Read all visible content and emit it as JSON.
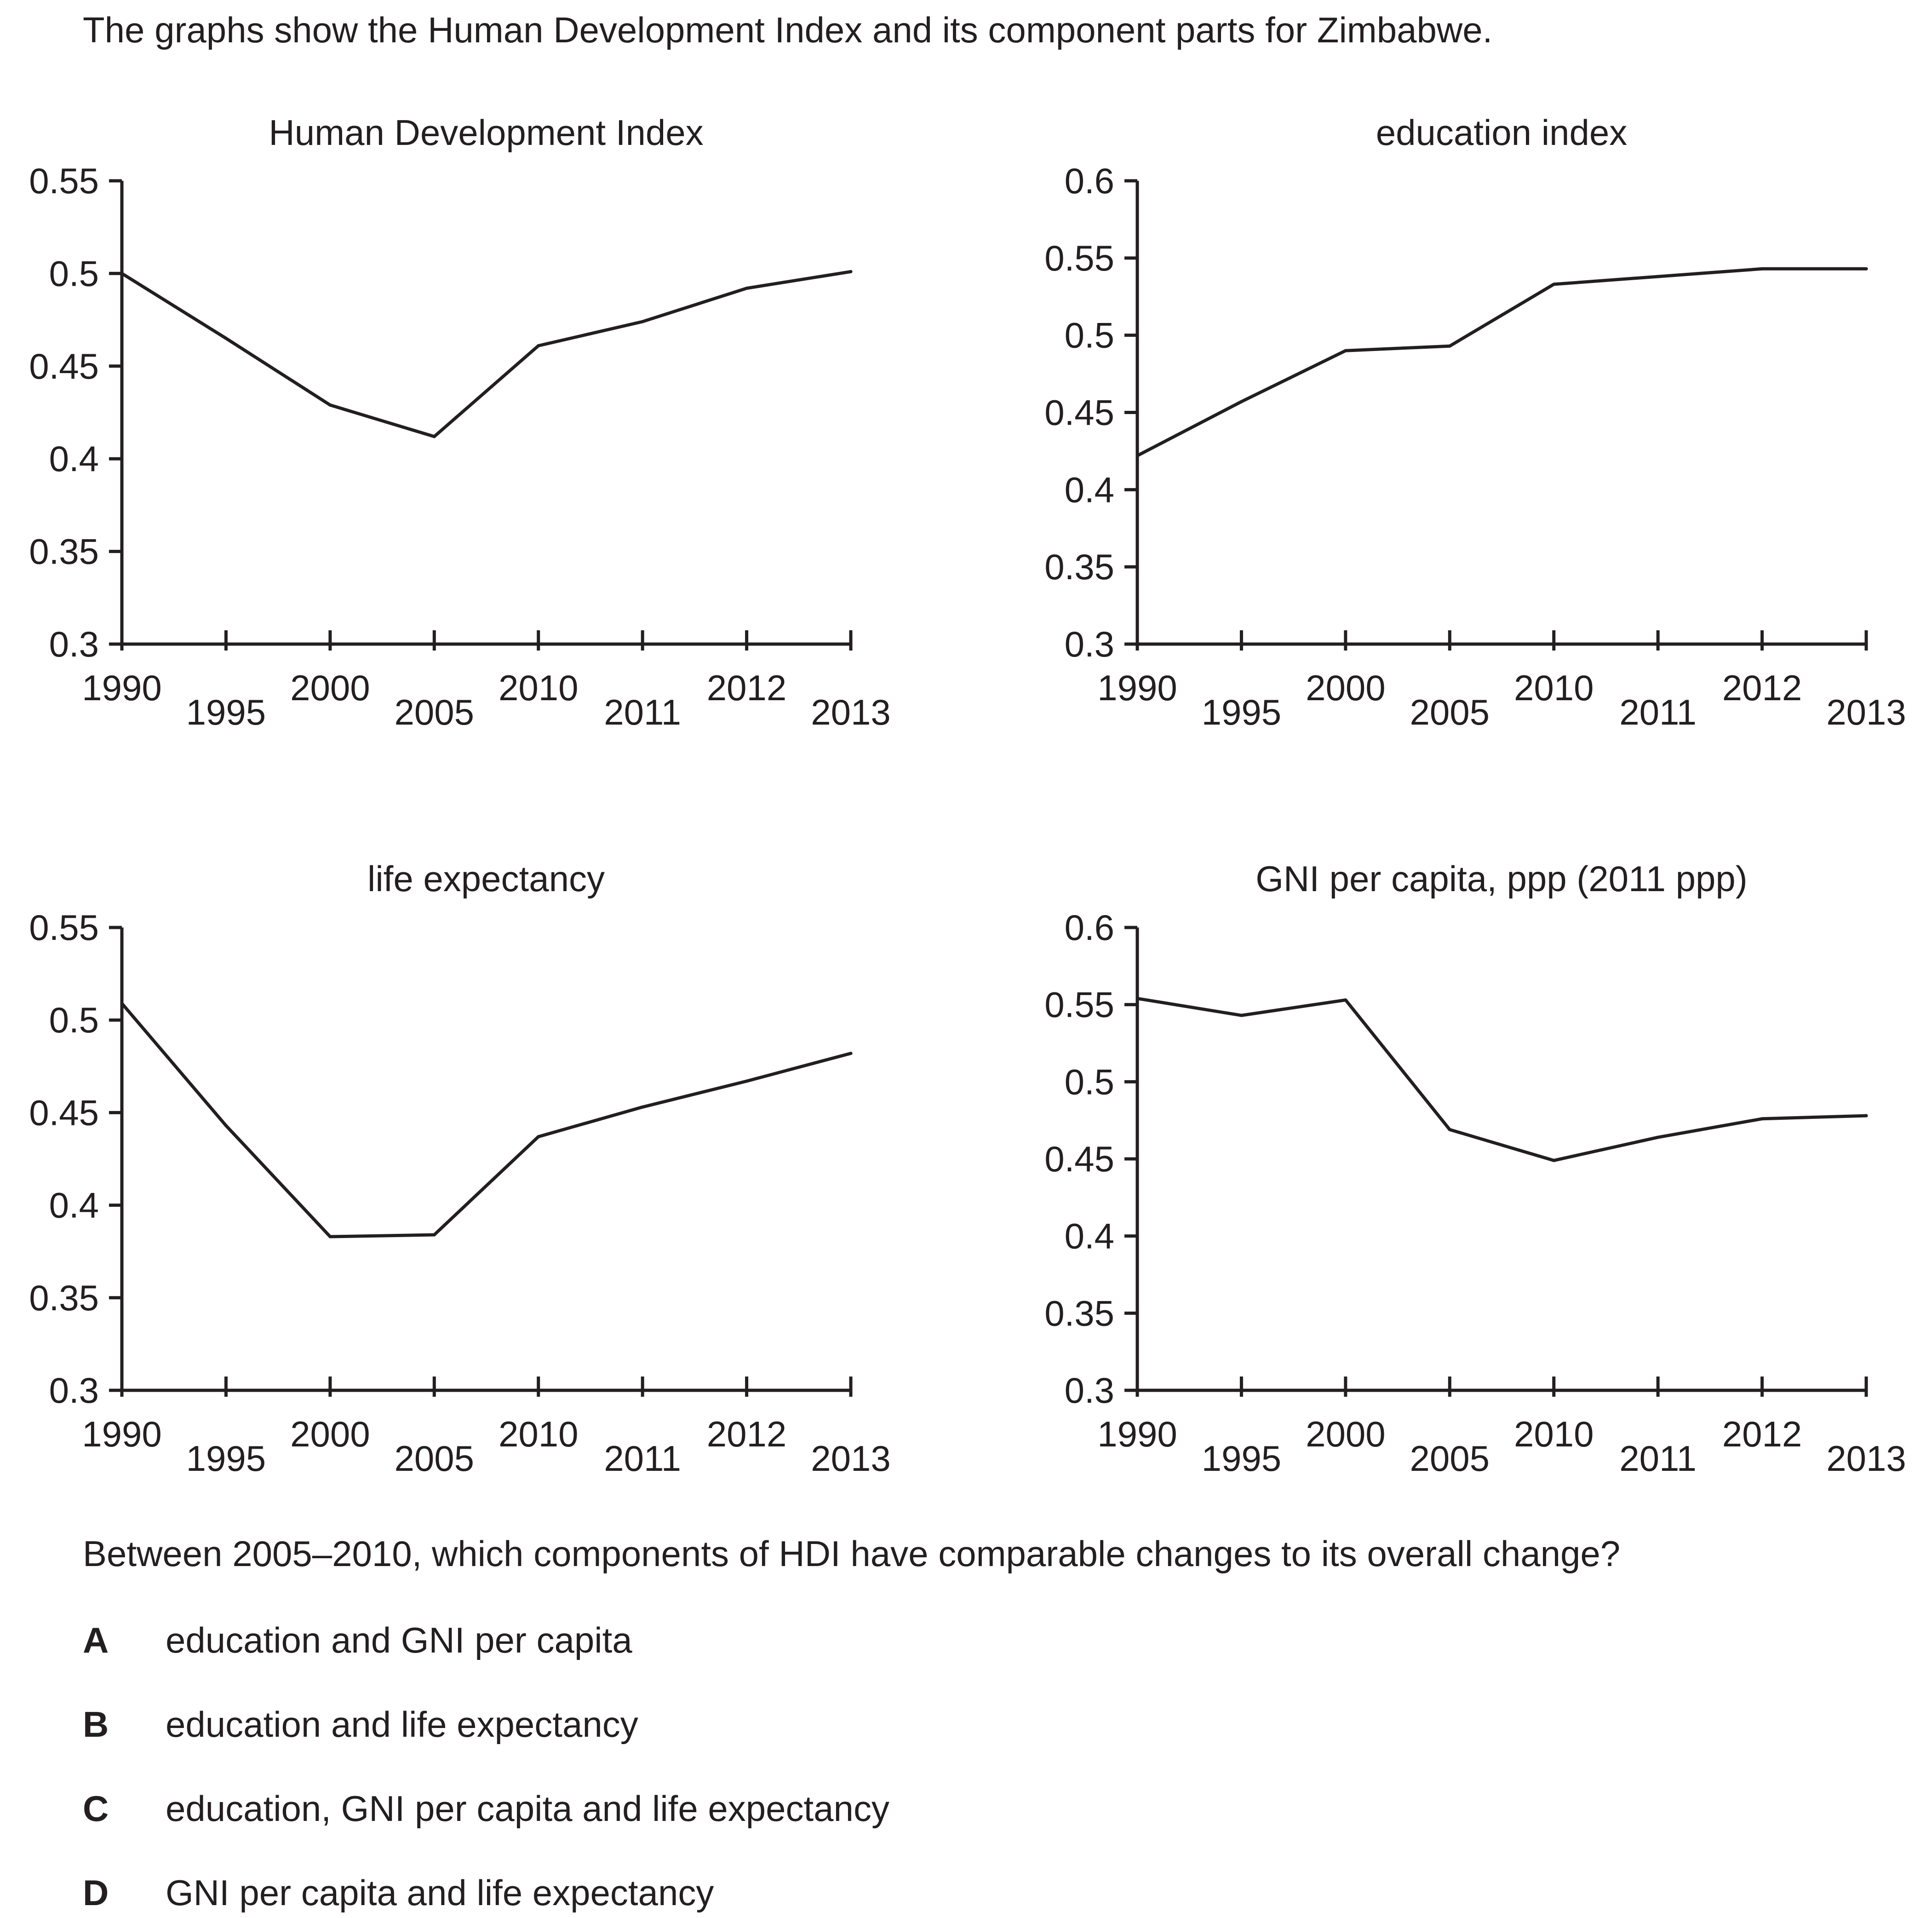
{
  "intro": "The graphs show the Human Development Index and its component parts for Zimbabwe.",
  "chart_data": [
    {
      "type": "line",
      "title": "Human Development Index",
      "categories": [
        "1990",
        "1995",
        "2000",
        "2005",
        "2010",
        "2011",
        "2012",
        "2013"
      ],
      "y_ticks": [
        "0.3",
        "0.35",
        "0.4",
        "0.45",
        "0.5",
        "0.55"
      ],
      "ylim": [
        0.3,
        0.55
      ],
      "values": [
        0.5,
        0.465,
        0.429,
        0.412,
        0.461,
        0.474,
        0.492,
        0.501
      ],
      "grid": false
    },
    {
      "type": "line",
      "title": "education index",
      "categories": [
        "1990",
        "1995",
        "2000",
        "2005",
        "2010",
        "2011",
        "2012",
        "2013"
      ],
      "y_ticks": [
        "0.3",
        "0.35",
        "0.4",
        "0.45",
        "0.5",
        "0.55",
        "0.6"
      ],
      "ylim": [
        0.3,
        0.6
      ],
      "values": [
        0.422,
        0.457,
        0.49,
        0.493,
        0.533,
        0.538,
        0.543,
        0.543
      ],
      "grid": false
    },
    {
      "type": "line",
      "title": "life expectancy",
      "categories": [
        "1990",
        "1995",
        "2000",
        "2005",
        "2010",
        "2011",
        "2012",
        "2013"
      ],
      "y_ticks": [
        "0.3",
        "0.35",
        "0.4",
        "0.45",
        "0.5",
        "0.55"
      ],
      "ylim": [
        0.3,
        0.55
      ],
      "values": [
        0.509,
        0.443,
        0.383,
        0.384,
        0.437,
        0.453,
        0.467,
        0.482
      ],
      "grid": false
    },
    {
      "type": "line",
      "title": "GNI per capita, ppp (2011 ppp)",
      "categories": [
        "1990",
        "1995",
        "2000",
        "2005",
        "2010",
        "2011",
        "2012",
        "2013"
      ],
      "y_ticks": [
        "0.3",
        "0.35",
        "0.4",
        "0.45",
        "0.5",
        "0.55",
        "0.6"
      ],
      "ylim": [
        0.3,
        0.6
      ],
      "values": [
        0.554,
        0.543,
        0.553,
        0.469,
        0.449,
        0.464,
        0.476,
        0.478
      ],
      "grid": false
    }
  ],
  "question": "Between 2005–2010, which components of HDI have comparable changes to its overall change?",
  "options": [
    {
      "letter": "A",
      "text": "education and GNI per capita"
    },
    {
      "letter": "B",
      "text": "education and life expectancy"
    },
    {
      "letter": "C",
      "text": "education, GNI per capita and life expectancy"
    },
    {
      "letter": "D",
      "text": "GNI per capita and life expectancy"
    }
  ],
  "colors": {
    "ink": "#231f20",
    "background": "#ffffff"
  }
}
